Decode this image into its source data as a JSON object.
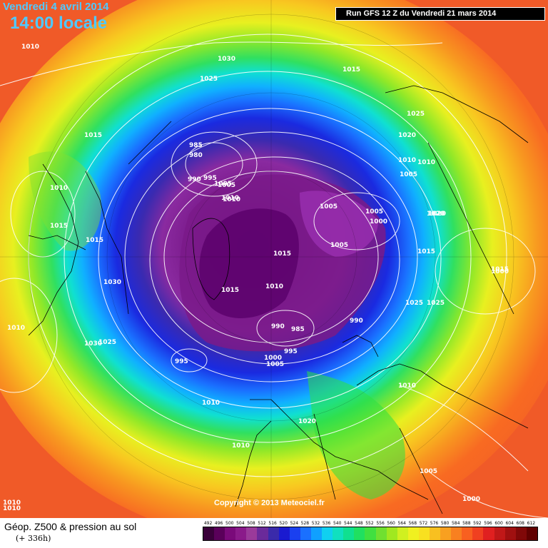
{
  "header": {
    "date_line": "Vendredi 4 avril 2014",
    "time_line": "14:00 locale",
    "run_info": "Run GFS 12 Z du Vendredi 21 mars 2014"
  },
  "copyright": "Copyright © 2013 Meteociel.fr",
  "legend": {
    "title": "Géop. Z500 & pression au sol",
    "subtitle": "(+ 336h)",
    "ticks": [
      "492",
      "496",
      "500",
      "504",
      "508",
      "512",
      "516",
      "520",
      "524",
      "528",
      "532",
      "536",
      "540",
      "544",
      "548",
      "552",
      "556",
      "560",
      "564",
      "568",
      "572",
      "576",
      "580",
      "584",
      "588",
      "592",
      "596",
      "600",
      "604",
      "608",
      "612"
    ],
    "colors": [
      "#3a003a",
      "#5a005a",
      "#7a0a7a",
      "#8a1a8a",
      "#9a3a9a",
      "#6a2a9a",
      "#3a2aaa",
      "#1a1ad0",
      "#1a40f0",
      "#1a70ff",
      "#10a0ff",
      "#10d0f0",
      "#10e0c0",
      "#10e090",
      "#20e060",
      "#40e040",
      "#70e030",
      "#a0e820",
      "#d0f020",
      "#f0f020",
      "#f8e020",
      "#f8c020",
      "#f8a020",
      "#f88020",
      "#f86020",
      "#f04020",
      "#e02020",
      "#c01818",
      "#a01010",
      "#800808",
      "#600000"
    ]
  },
  "map": {
    "background": "#f05a28",
    "isobar_color": "#ffffff",
    "pressure_labels": [
      "1010",
      "1030",
      "1015",
      "1025",
      "1015",
      "1025",
      "1020",
      "985",
      "980",
      "990",
      "995",
      "1005",
      "1010",
      "1010",
      "1005",
      "1005",
      "1020",
      "1015",
      "1000",
      "1015",
      "1005",
      "1030",
      "1015",
      "1010",
      "1015",
      "1005",
      "1000",
      "1025",
      "1025",
      "1010",
      "990",
      "985",
      "990",
      "1000",
      "1005",
      "995",
      "995",
      "1030",
      "1025",
      "1010",
      "1010",
      "1010",
      "1020",
      "1010",
      "1005",
      "1000",
      "1010",
      "1010",
      "1010",
      "1020",
      "1015",
      "1010",
      "1005",
      "1015"
    ]
  }
}
